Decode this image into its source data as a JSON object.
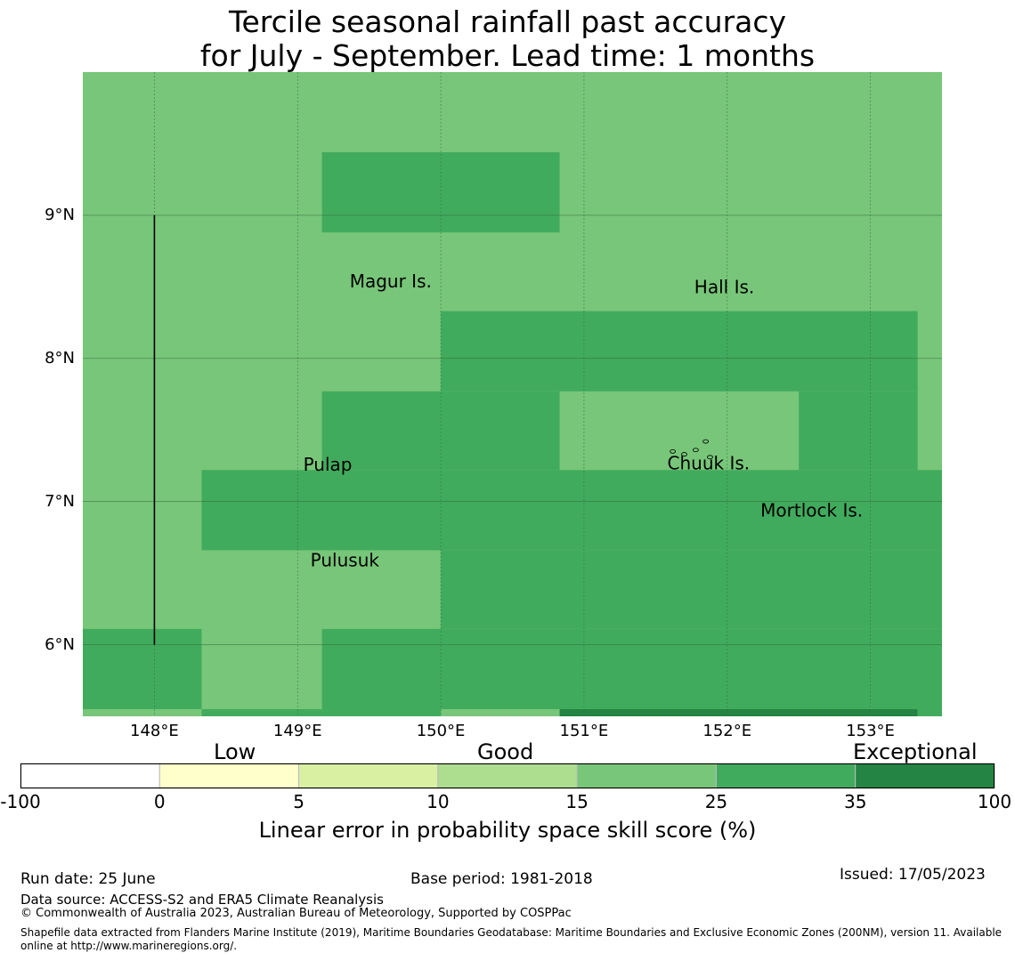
{
  "title": {
    "line1": "Tercile seasonal rainfall past accuracy",
    "line2": "for July - September. Lead time: 1 months"
  },
  "map": {
    "lon_range": [
      147.5,
      153.5
    ],
    "lat_range": [
      5.5,
      10.0
    ],
    "lat_ticks": [
      {
        "value": 9,
        "label": "9°N"
      },
      {
        "value": 8,
        "label": "8°N"
      },
      {
        "value": 7,
        "label": "7°N"
      },
      {
        "value": 6,
        "label": "6°N"
      }
    ],
    "lon_ticks": [
      {
        "value": 148,
        "label": "148°E"
      },
      {
        "value": 149,
        "label": "149°E"
      },
      {
        "value": 150,
        "label": "150°E"
      },
      {
        "value": 151,
        "label": "151°E"
      },
      {
        "value": 152,
        "label": "152°E"
      },
      {
        "value": 153,
        "label": "153°E"
      }
    ],
    "background_level": 4,
    "regions": [
      {
        "lon": [
          149.17,
          150.83
        ],
        "lat": [
          8.88,
          9.44
        ],
        "level": 5
      },
      {
        "lon": [
          150.0,
          153.33
        ],
        "lat": [
          7.77,
          8.33
        ],
        "level": 5
      },
      {
        "lon": [
          149.17,
          150.0
        ],
        "lat": [
          7.22,
          7.77
        ],
        "level": 5
      },
      {
        "lon": [
          150.0,
          150.83
        ],
        "lat": [
          7.22,
          7.77
        ],
        "level": 5
      },
      {
        "lon": [
          152.5,
          153.33
        ],
        "lat": [
          7.22,
          7.77
        ],
        "level": 5
      },
      {
        "lon": [
          148.33,
          153.5
        ],
        "lat": [
          6.66,
          7.22
        ],
        "level": 5
      },
      {
        "lon": [
          150.0,
          153.5
        ],
        "lat": [
          6.11,
          6.66
        ],
        "level": 5
      },
      {
        "lon": [
          147.5,
          148.33
        ],
        "lat": [
          5.55,
          6.11
        ],
        "level": 5
      },
      {
        "lon": [
          149.17,
          153.5
        ],
        "lat": [
          5.55,
          6.11
        ],
        "level": 5
      },
      {
        "lon": [
          148.33,
          149.17
        ],
        "lat": [
          5.5,
          5.55
        ],
        "level": 5
      },
      {
        "lon": [
          149.17,
          150.0
        ],
        "lat": [
          5.5,
          5.55
        ],
        "level": 5
      },
      {
        "lon": [
          150.83,
          153.33
        ],
        "lat": [
          5.5,
          5.55
        ],
        "level": 6
      },
      {
        "lon": [
          153.33,
          153.5
        ],
        "lat": [
          5.5,
          5.55
        ],
        "level": 5
      }
    ],
    "boundary_line": {
      "lon": 148.0,
      "lat": [
        6.0,
        9.0
      ]
    },
    "places": [
      {
        "name": "Magur Is.",
        "lon": 149.65,
        "lat": 8.53
      },
      {
        "name": "Hall Is.",
        "lon": 151.98,
        "lat": 8.49
      },
      {
        "name": "Pulap",
        "lon": 149.21,
        "lat": 7.25
      },
      {
        "name": "Chuuk Is.",
        "lon": 151.87,
        "lat": 7.26
      },
      {
        "name": "Mortlock Is.",
        "lon": 152.59,
        "lat": 6.93
      },
      {
        "name": "Pulusuk",
        "lon": 149.33,
        "lat": 6.58
      }
    ]
  },
  "colorbar": {
    "levels": [
      {
        "from": -100,
        "to": 0,
        "color": "#ffffff"
      },
      {
        "from": 0,
        "to": 5,
        "color": "#ffffcc"
      },
      {
        "from": 5,
        "to": 10,
        "color": "#d9f0a3"
      },
      {
        "from": 10,
        "to": 15,
        "color": "#addd8e"
      },
      {
        "from": 15,
        "to": 25,
        "color": "#78c679"
      },
      {
        "from": 25,
        "to": 35,
        "color": "#41ab5d"
      },
      {
        "from": 35,
        "to": 100,
        "color": "#238443"
      }
    ],
    "tick_labels": [
      "-100",
      "0",
      "5",
      "10",
      "15",
      "25",
      "35",
      "100"
    ],
    "categories": {
      "low": "Low",
      "good": "Good",
      "exceptional": "Exceptional"
    },
    "label": "Linear error in probability space skill score (%)"
  },
  "footer": {
    "run_date": "Run date: 25 June",
    "base_period": "Base period: 1981-2018",
    "issued": "Issued: 17/05/2023",
    "data_source": "Data source: ACCESS-S2 and ERA5 Climate Reanalysis",
    "copyright": "© Commonwealth of Australia 2023, Australian Bureau of Meteorology, Supported by COSPPac",
    "shapefile": "Shapefile data extracted from Flanders Marine Institute (2019), Maritime Boundaries Geodatabase: Maritime Boundaries and Exclusive Economic Zones (200NM), version 11. Available online at http://www.marineregions.org/."
  }
}
